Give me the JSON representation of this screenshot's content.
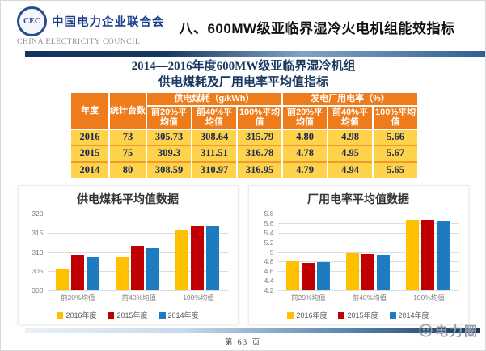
{
  "header": {
    "logo_text": "CEC",
    "org_name_cn": "中国电力企业联合会",
    "org_name_en": "CHINA ELECTRICITY COUNCIL",
    "slide_title": "八、600MW级亚临界湿冷火电机组能效指标"
  },
  "table": {
    "title_line1": "2014—2016年度600MW级亚临界湿冷机组",
    "title_line2": "供电煤耗及厂用电率平均值指标",
    "col_year": "年度",
    "col_units": "统计台数",
    "group_coal": "供电煤耗（g/kWh）",
    "group_aux": "发电厂用电率（%）",
    "subheaders": [
      "前20%平均值",
      "前40%平均值",
      "100%平均值",
      "前20%平均值",
      "前40%平均值",
      "100%平均值"
    ],
    "rows": [
      {
        "year": "2016",
        "units": "73",
        "cells": [
          "305.73",
          "308.64",
          "315.79",
          "4.80",
          "4.98",
          "5.66"
        ]
      },
      {
        "year": "2015",
        "units": "75",
        "cells": [
          "309.3",
          "311.51",
          "316.78",
          "4.78",
          "4.95",
          "5.67"
        ]
      },
      {
        "year": "2014",
        "units": "80",
        "cells": [
          "308.59",
          "310.97",
          "316.95",
          "4.79",
          "4.94",
          "5.65"
        ]
      }
    ]
  },
  "chart_data": [
    {
      "type": "bar",
      "title": "供电煤耗平均值数据",
      "categories": [
        "前20%均值",
        "前40%均值",
        "100%均值"
      ],
      "series": [
        {
          "name": "2016年度",
          "color": "#FFC000",
          "values": [
            305.73,
            308.64,
            315.79
          ]
        },
        {
          "name": "2015年度",
          "color": "#C00000",
          "values": [
            309.3,
            311.51,
            316.78
          ]
        },
        {
          "name": "2014年度",
          "color": "#1F7BC0",
          "values": [
            308.59,
            310.97,
            316.95
          ]
        }
      ],
      "ylim": [
        300,
        320
      ],
      "yticks": [
        300,
        305,
        310,
        315,
        320
      ],
      "grid": true,
      "legend_position": "bottom"
    },
    {
      "type": "bar",
      "title": "厂用电率平均值数据",
      "categories": [
        "前20%均值",
        "前40%均值",
        "100%均值"
      ],
      "series": [
        {
          "name": "2016年度",
          "color": "#FFC000",
          "values": [
            4.8,
            4.98,
            5.66
          ]
        },
        {
          "name": "2015年度",
          "color": "#C00000",
          "values": [
            4.78,
            4.95,
            5.67
          ]
        },
        {
          "name": "2014年度",
          "color": "#1F7BC0",
          "values": [
            4.79,
            4.94,
            5.65
          ]
        }
      ],
      "ylim": [
        4.2,
        5.8
      ],
      "yticks": [
        4.2,
        4.4,
        4.6,
        4.8,
        5,
        5.2,
        5.4,
        5.6,
        5.8
      ],
      "grid": true,
      "legend_position": "bottom"
    }
  ],
  "footer": {
    "page_label": "第 63 页",
    "watermark": "电力圈"
  },
  "colors": {
    "table_header_bg": "#EE7C1A",
    "table_row_bg": "#FFD24C",
    "table_text": "#1B2A55",
    "title_navy": "#17375E",
    "divider_dark": "#17375E",
    "divider_light": "#7EA4C6"
  }
}
